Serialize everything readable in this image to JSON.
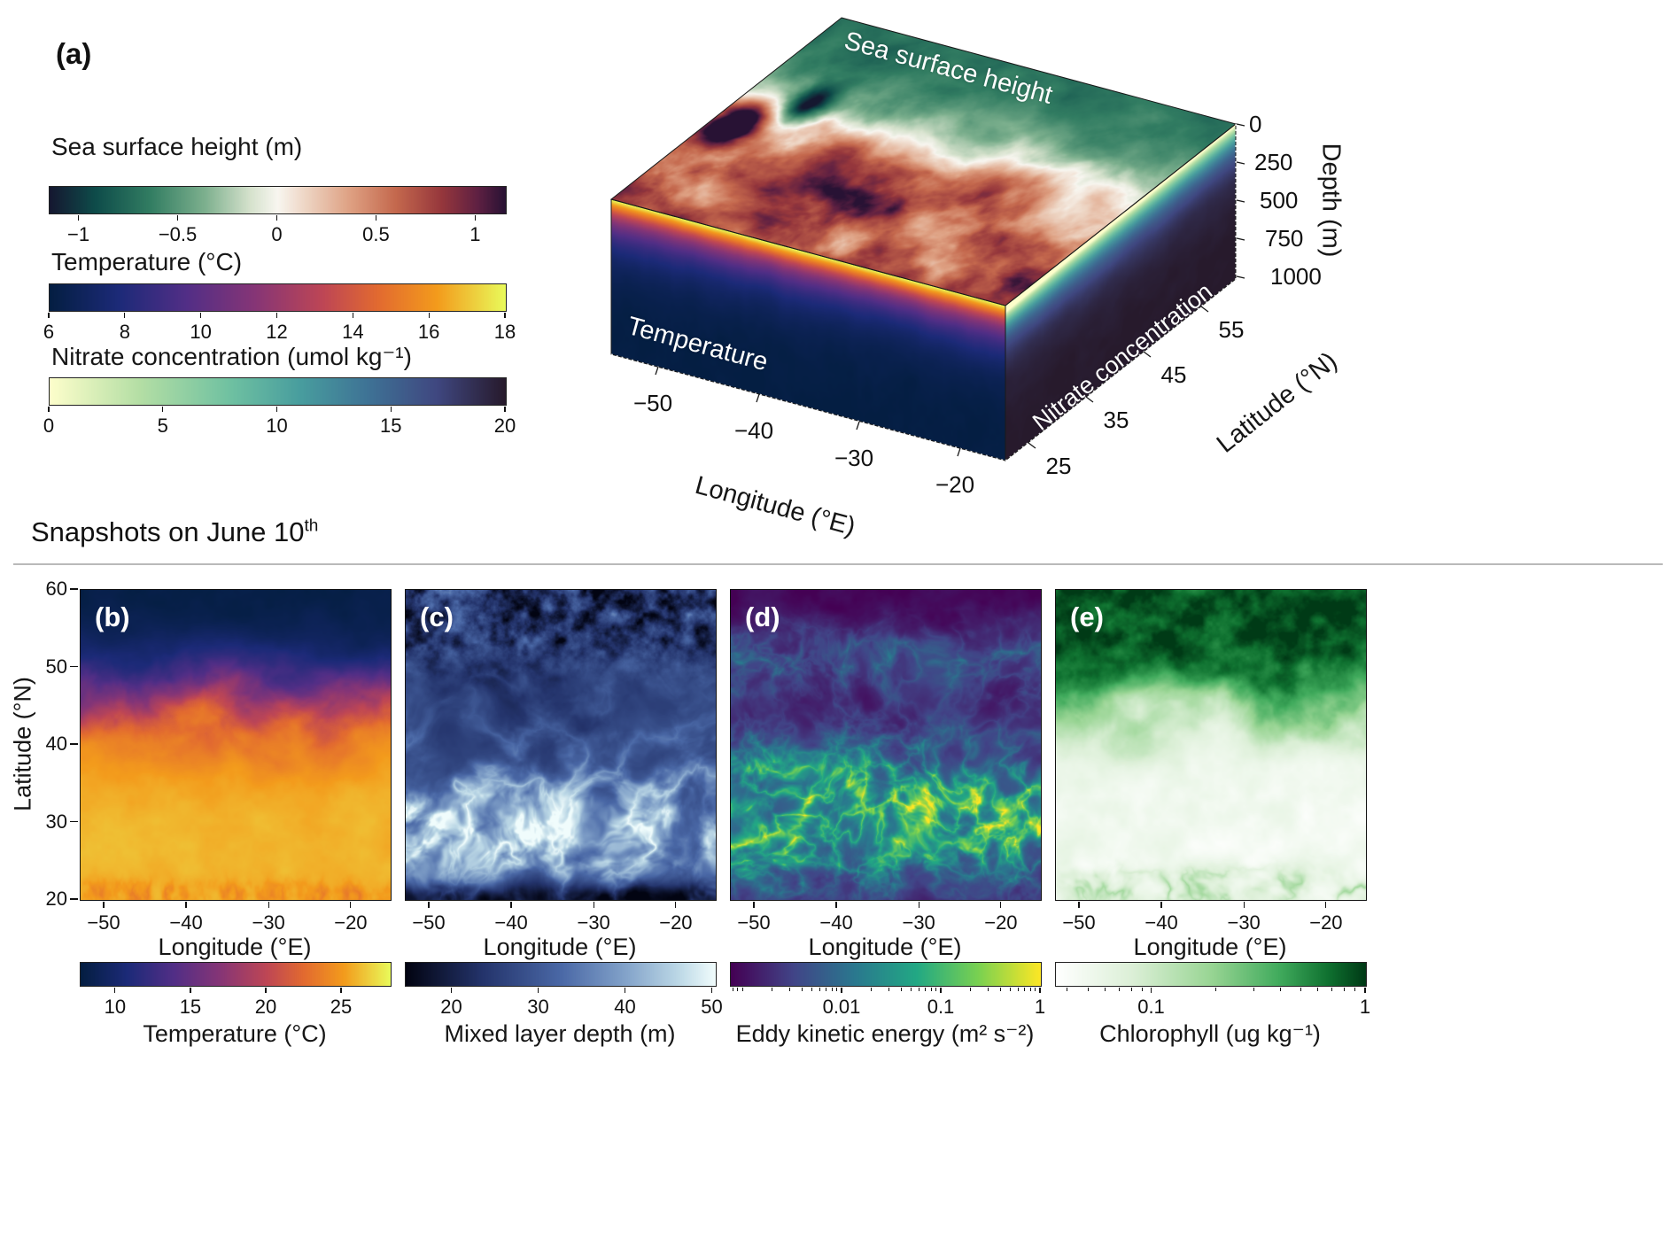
{
  "figure": {
    "panel_a_label": "(a)",
    "snapshots_heading": "Snapshots on June 10",
    "snapshots_heading_sup": "th"
  },
  "legend_colorbars": [
    {
      "title": "Sea surface height (m)",
      "tick_labels": [
        "−1",
        "−0.5",
        "0",
        "0.5",
        "1"
      ],
      "range": [
        -1.15,
        1.15
      ]
    },
    {
      "title": "Temperature (°C)",
      "tick_labels": [
        "6",
        "8",
        "10",
        "12",
        "14",
        "16",
        "18"
      ],
      "range": [
        6,
        18
      ]
    },
    {
      "title": "Nitrate concentration (umol kg⁻¹)",
      "tick_labels": [
        "0",
        "5",
        "10",
        "15",
        "20"
      ],
      "range": [
        0,
        20
      ]
    }
  ],
  "volume_plot": {
    "face_labels": {
      "top": "Sea surface height",
      "front": "Temperature",
      "side": "Nitrate concentration"
    },
    "x_axis": {
      "label": "Longitude (°E)",
      "tick_labels": [
        "−50",
        "−40",
        "−30",
        "−20"
      ]
    },
    "y_axis": {
      "label": "Latitude (°N)",
      "tick_labels": [
        "25",
        "35",
        "45",
        "55"
      ]
    },
    "z_axis": {
      "label": "Depth (m)",
      "tick_labels": [
        "0",
        "250",
        "500",
        "750",
        "1000"
      ]
    }
  },
  "shared_y_axis": {
    "label": "Latitude (°N)",
    "tick_labels": [
      "60",
      "50",
      "40",
      "30",
      "20"
    ]
  },
  "panels": [
    {
      "label": "(b)",
      "x_label": "Longitude (°E)",
      "x_ticks": [
        "−50",
        "−40",
        "−30",
        "−20"
      ],
      "colorbar": {
        "title": "Temperature (°C)",
        "tick_labels": [
          "10",
          "15",
          "20",
          "25"
        ]
      }
    },
    {
      "label": "(c)",
      "x_label": "Longitude (°E)",
      "x_ticks": [
        "−50",
        "−40",
        "−30",
        "−20"
      ],
      "colorbar": {
        "title": "Mixed layer depth (m)",
        "tick_labels": [
          "20",
          "30",
          "40",
          "50"
        ]
      }
    },
    {
      "label": "(d)",
      "x_label": "Longitude (°E)",
      "x_ticks": [
        "−50",
        "−40",
        "−30",
        "−20"
      ],
      "colorbar": {
        "title": "Eddy kinetic energy (m² s⁻²)",
        "tick_labels": [
          "0.01",
          "0.1",
          "1"
        ]
      }
    },
    {
      "label": "(e)",
      "x_label": "Longitude (°E)",
      "x_ticks": [
        "−50",
        "−40",
        "−30",
        "−20"
      ],
      "colorbar": {
        "title": "Chlorophyll (ug kg⁻¹)",
        "tick_labels": [
          "0.1",
          "1"
        ]
      }
    }
  ],
  "colors": {
    "background": "#ffffff",
    "divider": "#b9b9b9",
    "axis_text": "#1a1a1a",
    "face_label_text": "#ffffff"
  },
  "chart_data": [
    {
      "id": "a",
      "type": "heatmap",
      "title": "3D ocean volume: sea surface height (top face), temperature (front face), nitrate concentration (side face)",
      "x": {
        "label": "Longitude (°E)",
        "range": [
          -55,
          -15
        ],
        "ticks": [
          -50,
          -40,
          -30,
          -20
        ]
      },
      "y": {
        "label": "Latitude (°N)",
        "range": [
          20,
          60
        ],
        "ticks": [
          25,
          35,
          45,
          55
        ]
      },
      "z": {
        "label": "Depth (m)",
        "range": [
          0,
          1000
        ],
        "ticks": [
          0,
          250,
          500,
          750,
          1000
        ]
      },
      "faces": [
        {
          "variable": "Sea surface height (m)",
          "clim": [
            -1.15,
            1.15
          ],
          "scale": "linear",
          "colormap": "diverging teal-green / white / red-brown / dark purple",
          "pattern": "SSH about -0.4 to -0.7 m (green) north of ~45°N, near 0 (white) around 40-45°N, +0.3 to +1 m (red, eddy-rich) south of 40°N; one extreme +1.1 m eddy near -52°E, 38°N"
        },
        {
          "variable": "Temperature (°C)",
          "clim": [
            6,
            18
          ],
          "scale": "linear",
          "colormap": "thermal (navy, purple, orange, yellow)",
          "pattern": "about 18°C at surface decaying to ~11°C near 150 m, ~8°C near 300 m, 6-7°C below 500 m"
        },
        {
          "variable": "Nitrate concentration (umol kg⁻¹)",
          "clim": [
            0,
            20
          ],
          "scale": "linear",
          "colormap": "deep reversed (pale yellow, green, blue, dark indigo)",
          "pattern": "about 0 at surface (brightest near the southern corner), ~10 near 100 m, ~17 near 250 m, ~20 below 400 m"
        }
      ]
    },
    {
      "id": "b",
      "type": "heatmap",
      "variable": "Temperature (°C)",
      "x": {
        "label": "Longitude (°E)",
        "range": [
          -55,
          -15
        ],
        "ticks": [
          -50,
          -40,
          -30,
          -20
        ]
      },
      "y": {
        "label": "Latitude (°N)",
        "range": [
          20,
          60
        ],
        "ticks": [
          60,
          50,
          40,
          30,
          20
        ]
      },
      "colorbar": {
        "title": "Temperature (°C)",
        "ticks": [
          10,
          15,
          20,
          25
        ],
        "clim": [
          7.6,
          28.4
        ],
        "scale": "linear",
        "colormap": "thermal"
      },
      "pattern": "26-27°C south of 30°N, eddying front 38-48°N (15-22°C), 8-10°C north of 52°N"
    },
    {
      "id": "c",
      "type": "heatmap",
      "variable": "Mixed layer depth (m)",
      "x": {
        "label": "Longitude (°E)",
        "range": [
          -55,
          -15
        ],
        "ticks": [
          -50,
          -40,
          -30,
          -20
        ]
      },
      "y": {
        "label": "Latitude (°N)",
        "range": [
          20,
          60
        ],
        "ticks": [
          60,
          50,
          40,
          30,
          20
        ]
      },
      "colorbar": {
        "title": "Mixed layer depth (m)",
        "ticks": [
          20,
          30,
          40,
          50
        ],
        "clim": [
          14.5,
          50.3
        ],
        "scale": "linear",
        "colormap": "ice (black, blue, white)"
      },
      "pattern": "bright 40-50 m filaments and eddies 22-35°N, 25-35 m mid-basin, patchy shallow/dark values north of 50°N, thin dark band at 20°N"
    },
    {
      "id": "d",
      "type": "heatmap",
      "variable": "Eddy kinetic energy (m² s⁻²)",
      "x": {
        "label": "Longitude (°E)",
        "range": [
          -55,
          -15
        ],
        "ticks": [
          -50,
          -40,
          -30,
          -20
        ]
      },
      "y": {
        "label": "Latitude (°N)",
        "range": [
          20,
          60
        ],
        "ticks": [
          60,
          50,
          40,
          30,
          20
        ]
      },
      "colorbar": {
        "title": "Eddy kinetic energy (m² s⁻²)",
        "ticks": [
          0.01,
          0.1,
          1
        ],
        "clim": [
          0.00075,
          1
        ],
        "scale": "log",
        "colormap": "viridis"
      },
      "pattern": "filamentary eddies reaching ~0.5-1 m² s⁻² between 22-42°N (strongest near -50°E, 28-32°N), background ~0.001-0.01 north of 45°N with thin energetic filaments 48-56°N"
    },
    {
      "id": "e",
      "type": "heatmap",
      "variable": "Chlorophyll (ug kg⁻¹)",
      "x": {
        "label": "Longitude (°E)",
        "range": [
          -55,
          -15
        ],
        "ticks": [
          -50,
          -40,
          -30,
          -20
        ]
      },
      "y": {
        "label": "Latitude (°N)",
        "range": [
          20,
          60
        ],
        "ticks": [
          60,
          50,
          40,
          30,
          20
        ]
      },
      "colorbar": {
        "title": "Chlorophyll (ug kg⁻¹)",
        "ticks": [
          0.1,
          1
        ],
        "clim": [
          0.035,
          1
        ],
        "scale": "log",
        "colormap": "white to dark green"
      },
      "pattern": "0.4-1 ug kg⁻¹ (dark green) north of ~46°N, sharp wavy front 42-47°N, 0.04-0.1 (near white) south of 40°N with green filaments near 20-23°N"
    }
  ]
}
